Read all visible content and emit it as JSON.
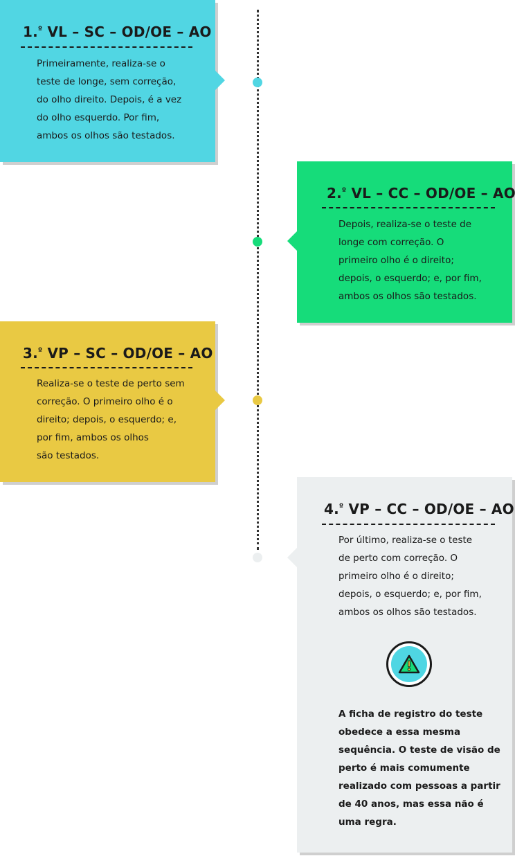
{
  "colors": {
    "step1": "#51d6e3",
    "step2": "#16dc7a",
    "step3": "#e9c943",
    "step4": "#eceff0",
    "line": "#333333"
  },
  "steps": [
    {
      "number": "1.",
      "ordinal": "º",
      "title": " VL – SC – OD/OE – AO",
      "text_lines": [
        "Primeiramente, realiza-se o",
        "teste de longe, sem correção,",
        "do olho direito. Depois, é a vez",
        "do olho esquerdo. Por fim,",
        "ambos os olhos são testados."
      ]
    },
    {
      "number": "2.",
      "ordinal": "º",
      "title": " VL – CC – OD/OE – AO",
      "text_lines": [
        "Depois, realiza-se o teste de",
        "longe com correção. O",
        "primeiro olho é o direito;",
        "depois, o esquerdo; e, por fim,",
        "ambos os olhos são testados."
      ]
    },
    {
      "number": "3.",
      "ordinal": "º",
      "title": " VP – SC – OD/OE – AO",
      "text_lines": [
        "Realiza-se o teste de perto sem",
        "correção. O primeiro olho é o",
        "direito; depois, o esquerdo; e,",
        "por fim, ambos os olhos",
        "são testados."
      ]
    },
    {
      "number": "4.",
      "ordinal": "º",
      "title": " VP – CC – OD/OE – AO",
      "text_lines": [
        "Por último, realiza-se o teste",
        "de perto com correção. O",
        "primeiro olho é o direito;",
        "depois, o esquerdo; e, por fim,",
        "ambos os olhos são testados."
      ],
      "icon": "warning-icon",
      "note_lines": [
        "A ficha de registro do teste",
        "obedece a essa mesma",
        "sequência. O teste de visão de",
        "perto é mais comumente",
        "realizado com pessoas a partir",
        "de 40 anos, mas essa não é",
        "uma regra."
      ]
    }
  ]
}
